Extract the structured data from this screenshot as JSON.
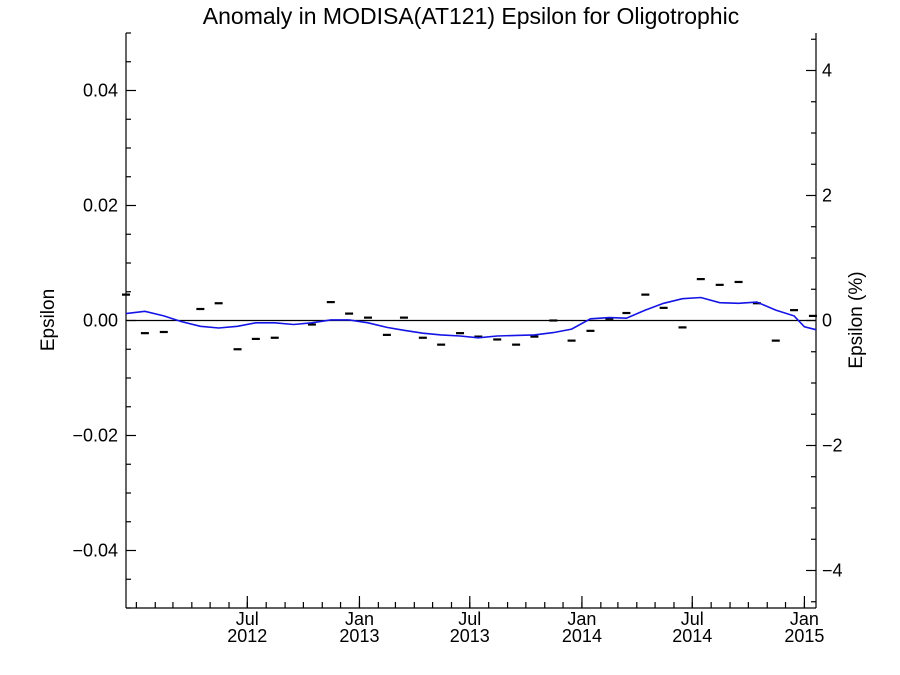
{
  "chart_data": {
    "type": "line",
    "title": "Anomaly in MODISA(AT121) Epsilon for Oligotrophic",
    "ylabel": "Epsilon",
    "y2label": "Epsilon (%)",
    "ylim": [
      -0.05,
      0.05
    ],
    "y2lim": [
      -4.6,
      4.6
    ],
    "y_ticks": [
      {
        "value": -0.04,
        "label": "−0.04"
      },
      {
        "value": -0.02,
        "label": "−0.02"
      },
      {
        "value": 0.0,
        "label": "0.00"
      },
      {
        "value": 0.02,
        "label": "0.02"
      },
      {
        "value": 0.04,
        "label": "0.04"
      }
    ],
    "y2_ticks": [
      {
        "value": -4,
        "label": "−4"
      },
      {
        "value": -2,
        "label": "−2"
      },
      {
        "value": 0,
        "label": "0"
      },
      {
        "value": 2,
        "label": "2"
      },
      {
        "value": 4,
        "label": "4"
      }
    ],
    "x_range": [
      "2011-12-15",
      "2015-01-20"
    ],
    "x_ticks": [
      {
        "date": "2012-07-01",
        "month": "Jul",
        "year": "2012"
      },
      {
        "date": "2013-01-01",
        "month": "Jan",
        "year": "2013"
      },
      {
        "date": "2013-07-01",
        "month": "Jul",
        "year": "2013"
      },
      {
        "date": "2014-01-01",
        "month": "Jan",
        "year": "2014"
      },
      {
        "date": "2014-07-01",
        "month": "Jul",
        "year": "2014"
      },
      {
        "date": "2015-01-01",
        "month": "Jan",
        "year": "2015"
      }
    ],
    "x_minor_months": true,
    "zero_line": true,
    "grid": false,
    "series": [
      {
        "style": "markers",
        "color": "#000000",
        "points": [
          [
            "2011-12-15",
            0.0045
          ],
          [
            "2012-01-15",
            -0.0022
          ],
          [
            "2012-02-15",
            -0.002
          ],
          [
            "2012-04-15",
            0.002
          ],
          [
            "2012-05-15",
            0.003
          ],
          [
            "2012-06-15",
            -0.005
          ],
          [
            "2012-07-15",
            -0.0032
          ],
          [
            "2012-08-15",
            -0.003
          ],
          [
            "2012-10-15",
            -0.0007
          ],
          [
            "2012-11-15",
            0.0032
          ],
          [
            "2012-12-15",
            0.0012
          ],
          [
            "2013-01-15",
            0.0005
          ],
          [
            "2013-02-15",
            -0.0025
          ],
          [
            "2013-03-15",
            0.0005
          ],
          [
            "2013-04-15",
            -0.003
          ],
          [
            "2013-05-15",
            -0.0042
          ],
          [
            "2013-06-15",
            -0.0022
          ],
          [
            "2013-07-15",
            -0.0028
          ],
          [
            "2013-08-15",
            -0.0033
          ],
          [
            "2013-09-15",
            -0.0042
          ],
          [
            "2013-10-15",
            -0.0028
          ],
          [
            "2013-11-15",
            0.0
          ],
          [
            "2013-12-15",
            -0.0035
          ],
          [
            "2014-01-15",
            -0.0018
          ],
          [
            "2014-02-15",
            0.0003
          ],
          [
            "2014-03-15",
            0.0013
          ],
          [
            "2014-04-15",
            0.0045
          ],
          [
            "2014-05-15",
            0.0022
          ],
          [
            "2014-06-15",
            -0.0012
          ],
          [
            "2014-07-15",
            0.0072
          ],
          [
            "2014-08-15",
            0.0062
          ],
          [
            "2014-09-15",
            0.0067
          ],
          [
            "2014-10-15",
            0.003
          ],
          [
            "2014-11-15",
            -0.0035
          ],
          [
            "2014-12-15",
            0.0018
          ],
          [
            "2015-01-15",
            0.0008
          ]
        ]
      },
      {
        "style": "line",
        "color": "#1414e6",
        "points": [
          [
            "2011-12-15",
            0.0012
          ],
          [
            "2012-01-15",
            0.0016
          ],
          [
            "2012-02-15",
            0.0008
          ],
          [
            "2012-03-15",
            -0.0002
          ],
          [
            "2012-04-15",
            -0.001
          ],
          [
            "2012-05-15",
            -0.0013
          ],
          [
            "2012-06-15",
            -0.001
          ],
          [
            "2012-07-15",
            -0.0004
          ],
          [
            "2012-08-15",
            -0.0004
          ],
          [
            "2012-09-15",
            -0.0007
          ],
          [
            "2012-10-15",
            -0.0004
          ],
          [
            "2012-11-15",
            0.0001
          ],
          [
            "2012-12-15",
            0.0001
          ],
          [
            "2013-01-15",
            -0.0004
          ],
          [
            "2013-02-15",
            -0.0012
          ],
          [
            "2013-03-15",
            -0.0017
          ],
          [
            "2013-04-15",
            -0.0022
          ],
          [
            "2013-05-15",
            -0.0025
          ],
          [
            "2013-06-15",
            -0.0027
          ],
          [
            "2013-07-15",
            -0.003
          ],
          [
            "2013-08-15",
            -0.0027
          ],
          [
            "2013-09-15",
            -0.0026
          ],
          [
            "2013-10-15",
            -0.0025
          ],
          [
            "2013-11-15",
            -0.0021
          ],
          [
            "2013-12-15",
            -0.0015
          ],
          [
            "2014-01-15",
            0.0003
          ],
          [
            "2014-02-15",
            0.0005
          ],
          [
            "2014-03-15",
            0.0004
          ],
          [
            "2014-04-15",
            0.0018
          ],
          [
            "2014-05-15",
            0.003
          ],
          [
            "2014-06-15",
            0.0038
          ],
          [
            "2014-07-15",
            0.004
          ],
          [
            "2014-08-15",
            0.0031
          ],
          [
            "2014-09-15",
            0.003
          ],
          [
            "2014-10-15",
            0.0032
          ],
          [
            "2014-11-15",
            0.0018
          ],
          [
            "2014-12-15",
            0.0008
          ],
          [
            "2015-01-01",
            -0.0011
          ],
          [
            "2015-01-20",
            -0.0016
          ]
        ]
      }
    ]
  }
}
